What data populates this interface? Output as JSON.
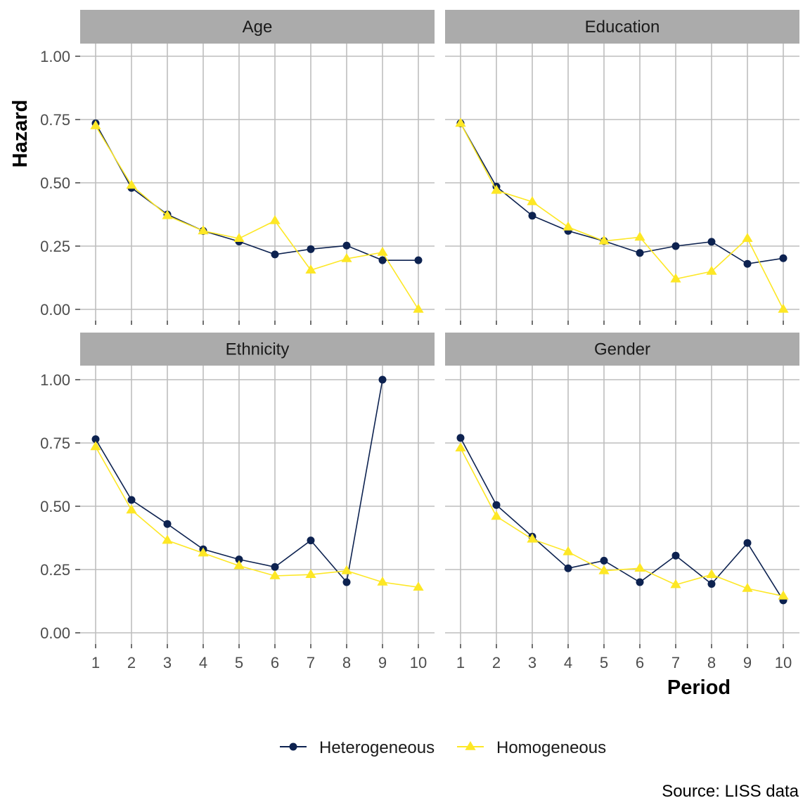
{
  "chart_data": {
    "type": "line",
    "xlabel": "Period",
    "ylabel": "Hazard",
    "caption": "Source: LISS data",
    "x": [
      1,
      2,
      3,
      4,
      5,
      6,
      7,
      8,
      9,
      10
    ],
    "x_tick_labels": [
      "1",
      "2",
      "3",
      "4",
      "5",
      "6",
      "7",
      "8",
      "9",
      "10"
    ],
    "ylim": [
      0,
      1
    ],
    "y_ticks": [
      0,
      0.25,
      0.5,
      0.75,
      1
    ],
    "y_tick_labels": [
      "0.00",
      "0.25",
      "0.50",
      "0.75",
      "1.00"
    ],
    "grid": true,
    "legend_position": "bottom",
    "series_styles": [
      {
        "name": "Heterogeneous",
        "color": "#0d2250",
        "marker": "circle"
      },
      {
        "name": "Homogeneous",
        "color": "#fde725",
        "marker": "triangle"
      }
    ],
    "panels": [
      {
        "title": "Age",
        "series": [
          {
            "name": "Heterogeneous",
            "values": [
              0.735,
              0.48,
              0.375,
              0.31,
              0.268,
              0.217,
              0.238,
              0.252,
              0.194,
              0.194
            ]
          },
          {
            "name": "Homogeneous",
            "values": [
              0.725,
              0.49,
              0.37,
              0.31,
              0.28,
              0.35,
              0.155,
              0.2,
              0.225,
              0.0
            ]
          }
        ]
      },
      {
        "title": "Education",
        "series": [
          {
            "name": "Heterogeneous",
            "values": [
              0.735,
              0.485,
              0.37,
              0.31,
              0.27,
              0.223,
              0.25,
              0.267,
              0.18,
              0.202
            ]
          },
          {
            "name": "Homogeneous",
            "values": [
              0.735,
              0.47,
              0.425,
              0.325,
              0.27,
              0.285,
              0.12,
              0.15,
              0.28,
              0.0
            ]
          }
        ]
      },
      {
        "title": "Ethnicity",
        "series": [
          {
            "name": "Heterogeneous",
            "values": [
              0.765,
              0.525,
              0.43,
              0.33,
              0.29,
              0.26,
              0.365,
              0.2,
              1.0,
              null
            ]
          },
          {
            "name": "Homogeneous",
            "values": [
              0.735,
              0.485,
              0.365,
              0.315,
              0.265,
              0.225,
              0.23,
              0.245,
              0.2,
              0.18
            ]
          }
        ]
      },
      {
        "title": "Gender",
        "series": [
          {
            "name": "Heterogeneous",
            "values": [
              0.77,
              0.505,
              0.38,
              0.255,
              0.285,
              0.2,
              0.305,
              0.193,
              0.355,
              0.128
            ]
          },
          {
            "name": "Homogeneous",
            "values": [
              0.73,
              0.46,
              0.37,
              0.32,
              0.245,
              0.255,
              0.19,
              0.23,
              0.175,
              0.145
            ]
          }
        ]
      }
    ]
  }
}
